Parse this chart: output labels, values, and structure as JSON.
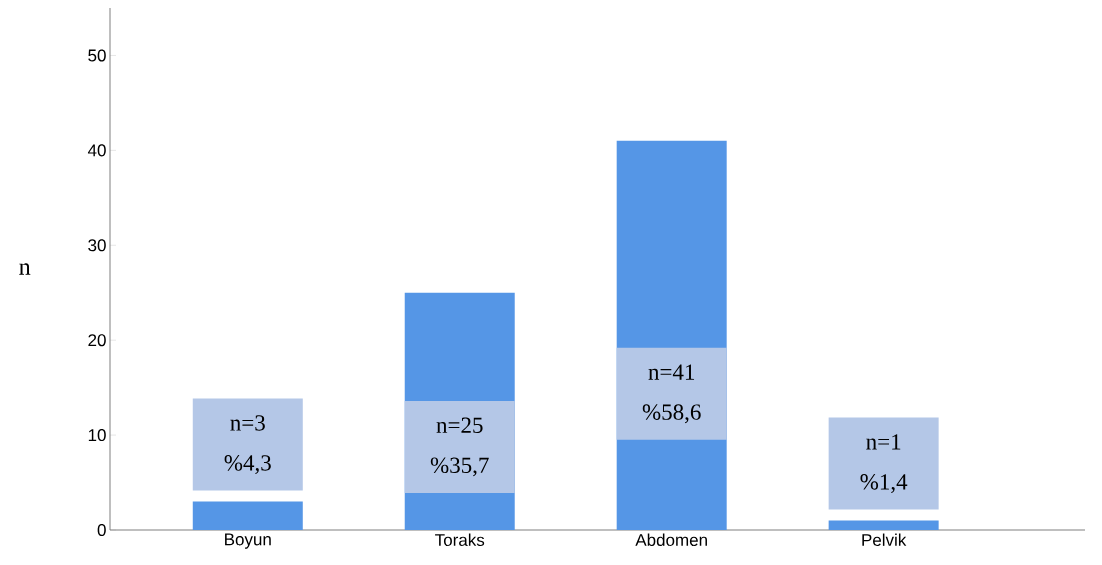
{
  "chart_data": {
    "type": "bar",
    "ylabel": "n",
    "categories": [
      "Boyun",
      "Toraks",
      "Abdomen",
      "Pelvik"
    ],
    "values": [
      3,
      25,
      41,
      1
    ],
    "value_labels": [
      "n=3 %4,3",
      "n=25 %35,7",
      "n=41 %58,6",
      "n=1 %1,4"
    ],
    "color": "#5596e6",
    "ylim": [
      0,
      55
    ],
    "yticks": [
      0,
      10,
      20,
      30,
      40,
      50
    ],
    "grid": false
  }
}
